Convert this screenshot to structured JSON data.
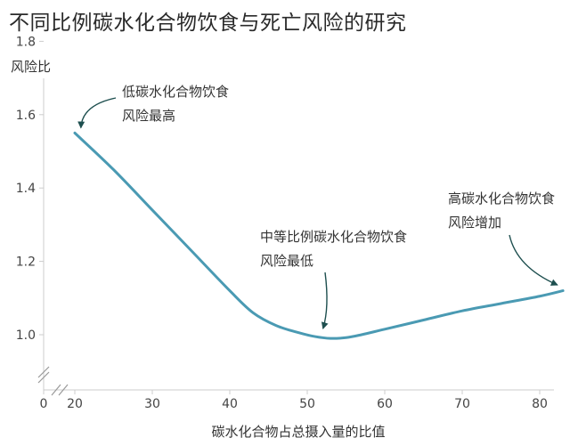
{
  "chart_data": {
    "type": "line",
    "title": "不同比例碳水化合物饮食与死亡风险的研究",
    "ylabel": "风险比",
    "xlabel": "碳水化合物占总摄入量的比值",
    "xlim": [
      0,
      84
    ],
    "ylim": [
      0.9,
      1.85
    ],
    "y_axis_break": true,
    "x_axis_break": true,
    "x_ticks": [
      0,
      20,
      30,
      40,
      50,
      60,
      70,
      80
    ],
    "y_ticks": [
      1.0,
      1.2,
      1.4,
      1.6,
      1.8
    ],
    "x_tick_labels": [
      "0",
      "20",
      "30",
      "40",
      "50",
      "60",
      "70",
      "80"
    ],
    "y_tick_labels": [
      "1.0",
      "1.2",
      "1.4",
      "1.6",
      "1.8"
    ],
    "grid": false,
    "colors": {
      "line": "#4a9ab3",
      "arrow": "#1e4f4f",
      "axis": "#cccccc"
    },
    "series": [
      {
        "x": [
          20,
          25,
          30,
          35,
          40,
          43,
          46,
          49,
          51,
          53,
          55,
          57,
          60,
          65,
          70,
          75,
          80,
          83
        ],
        "y": [
          1.55,
          1.45,
          1.34,
          1.23,
          1.12,
          1.06,
          1.025,
          1.005,
          0.995,
          0.99,
          0.992,
          1.0,
          1.015,
          1.04,
          1.065,
          1.085,
          1.105,
          1.12
        ]
      }
    ],
    "annotations": [
      {
        "lines": [
          "低碳水化合物饮食",
          "风险最高"
        ],
        "target": [
          20,
          1.55
        ]
      },
      {
        "lines": [
          "中等比例碳水化合物饮食",
          "风险最低"
        ],
        "target": [
          52,
          0.995
        ]
      },
      {
        "lines": [
          "高碳水化合物饮食",
          "风险增加"
        ],
        "target": [
          83,
          1.12
        ]
      }
    ]
  }
}
